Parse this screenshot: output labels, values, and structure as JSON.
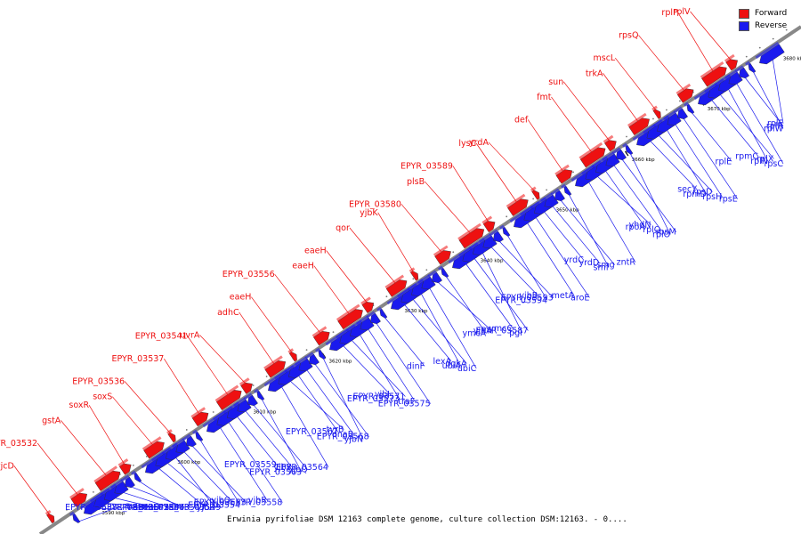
{
  "colors": {
    "forward": "#ee1111",
    "reverse": "#1a1aee",
    "axis": "#888888",
    "tick": "#000000"
  },
  "legend": {
    "forward_label": "Forward",
    "reverse_label": "Reverse"
  },
  "caption": "Erwinia pyrifoliae DSM 12163 complete genome, culture collection DSM:12163. - 0....",
  "axis_labels": [
    "3590 kbp",
    "3600 kbp",
    "3610 kbp",
    "3620 kbp",
    "3630 kbp",
    "3640 kbp",
    "3650 kbp",
    "3660 kbp",
    "3670 kbp",
    "3680 kbp"
  ],
  "forward_genes": [
    "yjcD",
    "EPYR_03532",
    "gstA",
    "soxR",
    "soxS",
    "EPYR_03536",
    "EPYR_03537",
    "EPYR_03541",
    "uvrA",
    "adhC",
    "eaeH",
    "EPYR_03556",
    "eaeH",
    "eaeH",
    "qor",
    "yjbK",
    "EPYR_03580",
    "plsB",
    "EPYR_03589",
    "lysC",
    "yrdA",
    "def",
    "fmt",
    "sun",
    "trkA",
    "mscL",
    "rpsQ",
    "rplP",
    "rplV"
  ],
  "reverse_genes": [
    "EPYR_03538",
    "fhaB",
    "hecB",
    "EPYR_03543",
    "EPYR_03542",
    "EPYR_03544",
    "ssb",
    "EPYR_03547",
    "EPYR_03549",
    "yjbR",
    "yjbQ",
    "EPYR_03553",
    "EPYR_03554",
    "yjbR",
    "EPYR_03558",
    "EPYR_03559",
    "yjbR",
    "yjbQ",
    "EPYR_03563",
    "EPYR_03564",
    "tyrB",
    "EPYR_03567",
    "dnaB",
    "EPYR_03568",
    "yjbN",
    "yjbJ",
    "EPYR_03571",
    "EPYR_03573",
    "traF",
    "EPYR_03575",
    "dinF",
    "lexA",
    "dgkA",
    "ubiA",
    "ubiC",
    "yjbA",
    "ymcA",
    "ymcC",
    "EPYR_03587",
    "pgi",
    "yjbB",
    "EPYR_03593",
    "EPYR_03594",
    "metA",
    "aroE",
    "yrdC",
    "yrdD",
    "smg",
    "smf",
    "zntR",
    "yhdN",
    "rpoA",
    "rplQ",
    "rpsM",
    "rplO",
    "secY",
    "rpsD",
    "rpmD",
    "rpsH",
    "rpsE",
    "rplE",
    "rpmC",
    "rplX",
    "rplN",
    "rpsC",
    "rplR",
    "rplW",
    "rplF"
  ]
}
